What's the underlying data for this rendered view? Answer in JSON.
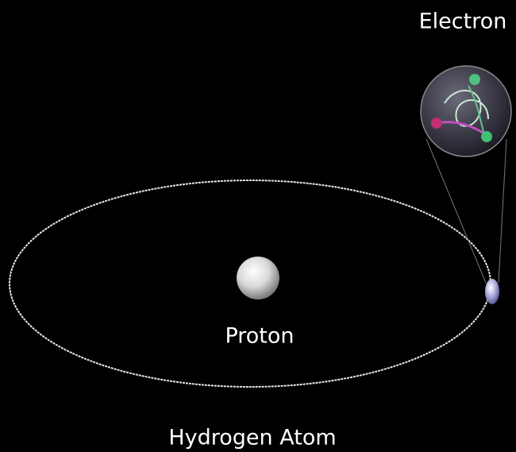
{
  "nodes": [
    {
      "label": "Electron"
    },
    {
      "label": "Proton"
    }
  ],
  "title": "Hydrogen Atom"
}
